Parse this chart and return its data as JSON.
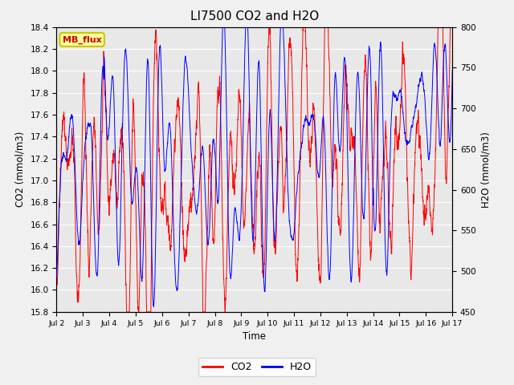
{
  "title": "LI7500 CO2 and H2O",
  "xlabel": "Time",
  "ylabel_left": "CO2 (mmol/m3)",
  "ylabel_right": "H2O (mmol/m3)",
  "co2_ylim": [
    15.8,
    18.4
  ],
  "h2o_ylim": [
    450,
    800
  ],
  "co2_yticks": [
    15.8,
    16.0,
    16.2,
    16.4,
    16.6,
    16.8,
    17.0,
    17.2,
    17.4,
    17.6,
    17.8,
    18.0,
    18.2,
    18.4
  ],
  "h2o_yticks": [
    450,
    500,
    550,
    600,
    650,
    700,
    750,
    800
  ],
  "xtick_labels": [
    "Jul 2",
    "Jul 3",
    "Jul 4",
    "Jul 5",
    "Jul 6",
    "Jul 7",
    "Jul 8",
    "Jul 9",
    "Jul 10",
    "Jul 11",
    "Jul 12",
    "Jul 13",
    "Jul 14",
    "Jul 15",
    "Jul 16",
    "Jul 17"
  ],
  "co2_color": "#ff0000",
  "h2o_color": "#0000ff",
  "plot_bg_color": "#e8e8e8",
  "fig_bg_color": "#f0f0f0",
  "grid_color": "#ffffff",
  "annotation_text": "MB_flux",
  "annotation_bg": "#ffff99",
  "annotation_border": "#c8c800",
  "title_fontsize": 11,
  "legend_co2": "CO2",
  "legend_h2o": "H2O",
  "n_points": 2880,
  "seed": 1234
}
